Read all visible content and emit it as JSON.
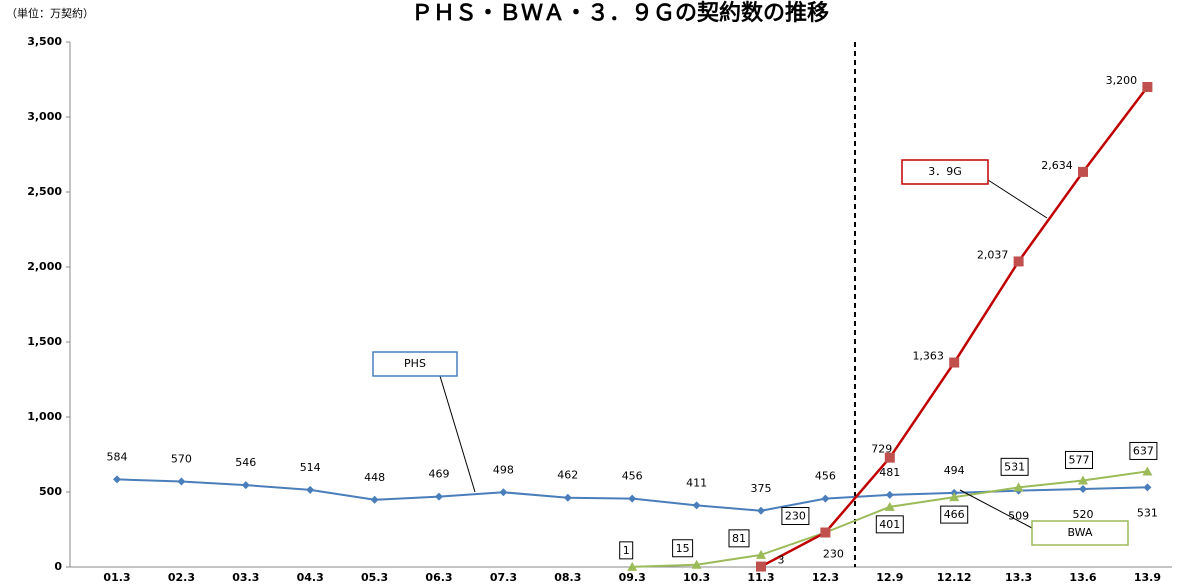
{
  "chart_data": {
    "type": "line",
    "title": "ＰＨＳ・ＢＷＡ・３．９Ｇの契約数の推移",
    "y_label": "（単位：万契約）",
    "categories": [
      "01.3",
      "02.3",
      "03.3",
      "04.3",
      "05.3",
      "06.3",
      "07.3",
      "08.3",
      "09.3",
      "10.3",
      "11.3",
      "12.3",
      "12.9",
      "12.12",
      "13.3",
      "13.6",
      "13.9"
    ],
    "series": [
      {
        "name": "PHS",
        "color": "#4a7ebb",
        "marker": "diamond",
        "values": [
          584,
          570,
          546,
          514,
          448,
          469,
          498,
          462,
          456,
          411,
          375,
          456,
          481,
          494,
          509,
          520,
          531
        ]
      },
      {
        "name": "BWA",
        "color": "#9bbb59",
        "marker": "triangle",
        "values": [
          null,
          null,
          null,
          null,
          null,
          null,
          null,
          null,
          1,
          15,
          81,
          230,
          401,
          466,
          531,
          577,
          637
        ]
      },
      {
        "name": "3．9G",
        "color": "#c00000",
        "marker": "square",
        "values": [
          null,
          null,
          null,
          null,
          null,
          null,
          null,
          null,
          null,
          null,
          3,
          230,
          729,
          1363,
          2037,
          2634,
          3200
        ],
        "value_labels": [
          null,
          null,
          null,
          null,
          null,
          null,
          null,
          null,
          null,
          null,
          "3",
          "230",
          "729",
          "1,363",
          "2,037",
          "2,634",
          "3,200"
        ]
      }
    ],
    "ylim": [
      0,
      3500
    ],
    "yticks": [
      0,
      500,
      {
        "value": 1000,
        "label": "1,000"
      },
      {
        "value": 1500,
        "label": "1,500"
      },
      {
        "value": 2000,
        "label": "2,000"
      },
      {
        "value": 2500,
        "label": "2,500"
      },
      {
        "value": 3000,
        "label": "3,000"
      },
      {
        "value": 3500,
        "label": "3,500"
      }
    ]
  }
}
